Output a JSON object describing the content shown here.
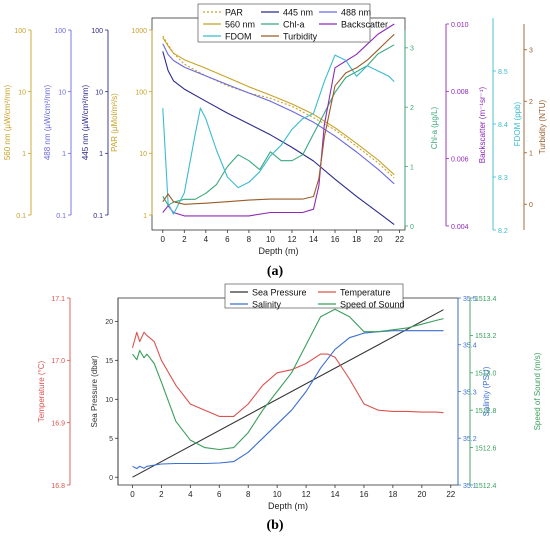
{
  "figure": {
    "panel_a_label": "(a)",
    "panel_b_label": "(b)"
  },
  "chart_data": [
    {
      "type": "line",
      "panel": "(a)",
      "xlabel": "Depth (m)",
      "xlim": [
        -1,
        22.5
      ],
      "xticks": [
        0,
        2,
        4,
        6,
        8,
        10,
        12,
        14,
        16,
        18,
        20,
        22
      ],
      "legend_position": "top",
      "axes": {
        "par": {
          "label": "PAR (µMol/m²/s)",
          "color": "#c8a228",
          "scale": "log",
          "lim": [
            1,
            1000
          ],
          "ticks": [
            1,
            10,
            100,
            1000
          ],
          "tick_labels": [
            "1",
            "10",
            "100",
            "1000"
          ]
        },
        "nm445": {
          "label": "445 nm (µW/cm²/nm)",
          "color": "#2b2b8c",
          "scale": "log",
          "lim": [
            0.1,
            100
          ],
          "ticks": [
            0.1,
            1,
            10,
            100
          ],
          "tick_labels": [
            "0.1",
            "1",
            "10",
            "100"
          ]
        },
        "nm488": {
          "label": "488 nm (µW/cm²/nm)",
          "color": "#6a6ae0",
          "scale": "log",
          "lim": [
            0.1,
            100
          ],
          "ticks": [
            0.1,
            1,
            10,
            100
          ],
          "tick_labels": [
            "0.1",
            "1",
            "10",
            "100"
          ]
        },
        "nm560": {
          "label": "560 nm (µW/cm²/nm)",
          "color": "#c8a228",
          "scale": "log",
          "lim": [
            0.1,
            100
          ],
          "ticks": [
            0.1,
            1,
            10,
            100
          ],
          "tick_labels": [
            "0.1",
            "1",
            "10",
            "100"
          ]
        },
        "chla": {
          "label": "Chl-a (µg/L)",
          "color": "#3aa87a",
          "scale": "linear",
          "lim": [
            0,
            3.3
          ],
          "ticks": [
            0,
            1,
            2,
            3
          ],
          "tick_labels": [
            "0",
            "1",
            "2",
            "3"
          ]
        },
        "backscatter": {
          "label": "Backscatter (m⁻¹sr⁻¹)",
          "color": "#8e2ab5",
          "scale": "linear",
          "lim": [
            0.004,
            0.01
          ],
          "ticks": [
            0.004,
            0.006,
            0.008,
            0.01
          ],
          "tick_labels": [
            "0.004",
            "0.006",
            "0.008",
            "0.010"
          ]
        },
        "fdom": {
          "label": "FDOM (ppb)",
          "color": "#3bbccf",
          "scale": "linear",
          "lim": [
            8.2,
            8.6
          ],
          "ticks": [
            8.2,
            8.3,
            8.4,
            8.5
          ],
          "tick_labels": [
            "8.2",
            "8.3",
            "8.4",
            "8.5"
          ]
        },
        "turbidity": {
          "label": "Turbidity (NTU)",
          "color": "#9a5c28",
          "scale": "linear",
          "lim": [
            -0.5,
            3.5
          ],
          "ticks": [
            0,
            1,
            2,
            3
          ],
          "tick_labels": [
            "0",
            "1",
            "2",
            "3"
          ]
        }
      },
      "series": [
        {
          "name": "PAR",
          "axis": "par",
          "color": "#c8a228",
          "dash": "dotted",
          "x": [
            0,
            1,
            2,
            4,
            6,
            8,
            10,
            12,
            14,
            16,
            18,
            20,
            21.5
          ],
          "y": [
            800,
            420,
            280,
            180,
            125,
            95,
            78,
            58,
            38,
            24,
            13,
            7,
            4
          ]
        },
        {
          "name": "445 nm",
          "axis": "nm445",
          "color": "#2b2b8c",
          "dash": "solid",
          "x": [
            0,
            0.5,
            1,
            2,
            4,
            6,
            8,
            10,
            12,
            14,
            16,
            18,
            20,
            21.5
          ],
          "y": [
            45,
            22,
            15,
            11,
            7,
            4.5,
            3,
            2,
            1.25,
            0.75,
            0.38,
            0.2,
            0.11,
            0.07
          ]
        },
        {
          "name": "488 nm",
          "axis": "nm488",
          "color": "#6a6ae0",
          "dash": "solid",
          "x": [
            0,
            0.5,
            1,
            2,
            4,
            6,
            8,
            10,
            12,
            14,
            16,
            18,
            20,
            21.5
          ],
          "y": [
            60,
            40,
            32,
            25,
            18,
            13,
            9.5,
            7,
            4.8,
            3.2,
            1.9,
            1.05,
            0.55,
            0.32
          ]
        },
        {
          "name": "560 nm",
          "axis": "nm560",
          "color": "#c8a228",
          "dash": "solid",
          "x": [
            0,
            0.5,
            1,
            2,
            4,
            6,
            8,
            10,
            12,
            14,
            16,
            18,
            20,
            21.5
          ],
          "y": [
            75,
            55,
            42,
            33,
            24,
            17,
            12,
            8.8,
            6.3,
            4.3,
            2.6,
            1.45,
            0.78,
            0.45
          ]
        },
        {
          "name": "Chl-a",
          "axis": "chla",
          "color": "#3aa87a",
          "dash": "solid",
          "x": [
            0,
            0.5,
            1,
            2,
            3,
            4,
            5,
            6,
            7,
            8,
            9,
            10,
            11,
            12,
            13,
            14,
            15,
            16,
            17,
            18,
            19,
            20,
            21,
            21.5
          ],
          "y": [
            0.5,
            0.35,
            0.4,
            0.45,
            0.45,
            0.55,
            0.7,
            1.0,
            1.2,
            1.1,
            0.95,
            1.25,
            1.1,
            1.1,
            1.2,
            1.55,
            1.9,
            2.25,
            2.5,
            2.6,
            2.7,
            2.9,
            3.0,
            3.05
          ]
        },
        {
          "name": "Backscatter",
          "axis": "backscatter",
          "color": "#8e2ab5",
          "dash": "solid",
          "x": [
            0,
            0.5,
            1,
            2,
            4,
            6,
            8,
            10,
            12,
            13,
            14,
            14.5,
            15,
            16,
            17,
            18,
            19,
            20,
            21,
            21.5
          ],
          "y": [
            0.0044,
            0.0046,
            0.0044,
            0.0043,
            0.0043,
            0.0043,
            0.0043,
            0.0044,
            0.0044,
            0.0044,
            0.0045,
            0.0052,
            0.007,
            0.0087,
            0.0089,
            0.0091,
            0.0094,
            0.0097,
            0.0099,
            0.01
          ]
        },
        {
          "name": "FDOM",
          "axis": "fdom",
          "color": "#3bbccf",
          "dash": "solid",
          "x": [
            0,
            0.5,
            1,
            1.5,
            2,
            3,
            3.5,
            4,
            5,
            6,
            7,
            8,
            9,
            10,
            11,
            12,
            13,
            14,
            15,
            16,
            17,
            18,
            19,
            20,
            21,
            21.5
          ],
          "y": [
            8.43,
            8.25,
            8.23,
            8.25,
            8.27,
            8.38,
            8.43,
            8.41,
            8.35,
            8.3,
            8.28,
            8.29,
            8.31,
            8.34,
            8.36,
            8.39,
            8.41,
            8.42,
            8.48,
            8.53,
            8.52,
            8.49,
            8.51,
            8.5,
            8.49,
            8.48
          ]
        },
        {
          "name": "Turbidity",
          "axis": "turbidity",
          "color": "#9a5c28",
          "dash": "solid",
          "x": [
            0,
            0.5,
            1,
            2,
            4,
            6,
            8,
            10,
            12,
            13,
            14,
            14.5,
            15,
            16,
            17,
            18,
            19,
            20,
            21,
            21.5
          ],
          "y": [
            0.05,
            0.2,
            0.05,
            0.0,
            0.02,
            0.05,
            0.08,
            0.1,
            0.1,
            0.1,
            0.15,
            0.5,
            1.3,
            2.3,
            2.55,
            2.65,
            2.8,
            3.0,
            3.2,
            3.3
          ]
        }
      ]
    },
    {
      "type": "line",
      "panel": "(b)",
      "xlabel": "Depth (m)",
      "xlim": [
        -1,
        22.5
      ],
      "xticks": [
        0,
        2,
        4,
        6,
        8,
        10,
        12,
        14,
        16,
        18,
        20,
        22
      ],
      "legend_position": "top",
      "axes": {
        "temp": {
          "label": "Temperature (°C)",
          "color": "#d9534f",
          "lim": [
            16.8,
            17.1
          ],
          "ticks": [
            16.8,
            16.9,
            17.0,
            17.1
          ],
          "tick_labels": [
            "16.8",
            "16.9",
            "17.0",
            "17.1"
          ]
        },
        "pressure": {
          "label": "Sea Pressure (dbar)",
          "color": "#333333",
          "lim": [
            -1,
            23
          ],
          "ticks": [
            0,
            5,
            10,
            15,
            20
          ],
          "tick_labels": [
            "0",
            "5",
            "10",
            "15",
            "20"
          ]
        },
        "sal": {
          "label": "Salinity (PSU)",
          "color": "#3b6fd0",
          "lim": [
            35.1,
            35.5
          ],
          "ticks": [
            35.1,
            35.2,
            35.3,
            35.4,
            35.5
          ],
          "tick_labels": [
            "35.1",
            "35.2",
            "35.3",
            "35.4",
            "35.5"
          ]
        },
        "sos": {
          "label": "Speed of Sound (m/s)",
          "color": "#3a9e5c",
          "lim": [
            1512.4,
            1513.4
          ],
          "ticks": [
            1512.4,
            1512.6,
            1512.8,
            1513.0,
            1513.2,
            1513.4
          ],
          "tick_labels": [
            "1512.4",
            "1512.6",
            "1512.8",
            "1513.0",
            "1513.2",
            "1513.4"
          ]
        }
      },
      "series": [
        {
          "name": "Sea Pressure",
          "axis": "pressure",
          "color": "#333333",
          "x": [
            0,
            21.5
          ],
          "y": [
            0,
            21.5
          ]
        },
        {
          "name": "Temperature",
          "axis": "temp",
          "color": "#d9534f",
          "x": [
            0,
            0.3,
            0.5,
            0.8,
            1,
            1.5,
            2,
            3,
            4,
            5,
            6,
            7,
            8,
            9,
            10,
            11,
            12,
            13,
            13.5,
            14,
            15,
            16,
            17,
            18,
            19,
            20,
            21,
            21.5
          ],
          "y": [
            17.02,
            17.045,
            17.03,
            17.045,
            17.04,
            17.03,
            17.0,
            16.96,
            16.93,
            16.92,
            16.91,
            16.91,
            16.93,
            16.96,
            16.98,
            16.985,
            16.995,
            17.01,
            17.01,
            17.005,
            16.97,
            16.93,
            16.92,
            16.918,
            16.918,
            16.917,
            16.917,
            16.916
          ]
        },
        {
          "name": "Salinity",
          "axis": "sal",
          "color": "#3b6fd0",
          "x": [
            0,
            0.3,
            0.5,
            0.8,
            1,
            2,
            3,
            4,
            5,
            6,
            7,
            8,
            9,
            10,
            11,
            12,
            13,
            14,
            15,
            16,
            17,
            18,
            19,
            20,
            21,
            21.5
          ],
          "y": [
            35.14,
            35.135,
            35.14,
            35.136,
            35.14,
            35.145,
            35.146,
            35.146,
            35.146,
            35.147,
            35.15,
            35.17,
            35.2,
            35.23,
            35.26,
            35.3,
            35.35,
            35.39,
            35.415,
            35.425,
            35.428,
            35.43,
            35.43,
            35.43,
            35.43,
            35.43
          ]
        },
        {
          "name": "Speed of Sound",
          "axis": "sos",
          "color": "#3a9e5c",
          "x": [
            0,
            0.3,
            0.5,
            0.8,
            1,
            1.5,
            2,
            3,
            4,
            5,
            6,
            7,
            8,
            9,
            10,
            11,
            12,
            13,
            14,
            15,
            16,
            17,
            18,
            19,
            20,
            21,
            21.5
          ],
          "y": [
            1513.1,
            1513.07,
            1513.12,
            1513.08,
            1513.1,
            1513.05,
            1512.95,
            1512.74,
            1512.64,
            1512.6,
            1512.59,
            1512.6,
            1512.68,
            1512.8,
            1512.9,
            1513.0,
            1513.15,
            1513.3,
            1513.34,
            1513.3,
            1513.22,
            1513.22,
            1513.23,
            1513.24,
            1513.26,
            1513.28,
            1513.29
          ]
        }
      ]
    }
  ]
}
